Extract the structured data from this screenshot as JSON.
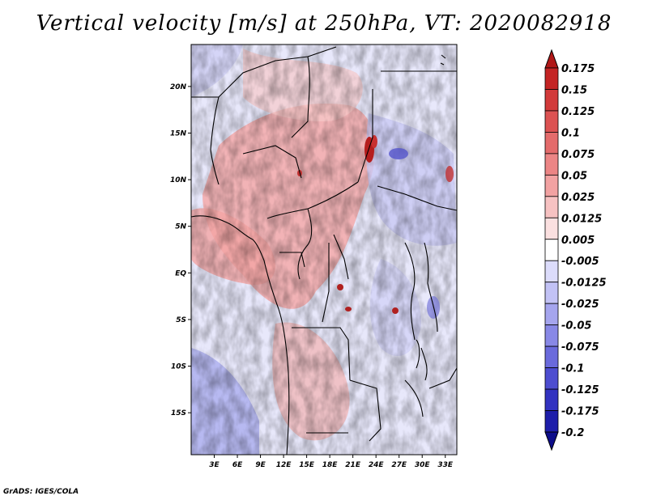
{
  "title": "Vertical velocity [m/s] at 250hPa, VT: 2020082918",
  "credit": "GrADS: IGES/COLA",
  "map": {
    "variable": "Vertical velocity",
    "units": "m/s",
    "level": "250hPa",
    "valid_time": "2020082918",
    "lon_range": [
      0,
      34.5
    ],
    "lat_range": [
      -19.5,
      24.5
    ],
    "lat_ticks": [
      {
        "value": 20,
        "label": "20N"
      },
      {
        "value": 15,
        "label": "15N"
      },
      {
        "value": 10,
        "label": "10N"
      },
      {
        "value": 5,
        "label": "5N"
      },
      {
        "value": 0,
        "label": "EQ"
      },
      {
        "value": -5,
        "label": "5S"
      },
      {
        "value": -10,
        "label": "10S"
      },
      {
        "value": -15,
        "label": "15S"
      }
    ],
    "lon_ticks": [
      {
        "value": 3,
        "label": "3E"
      },
      {
        "value": 6,
        "label": "6E"
      },
      {
        "value": 9,
        "label": "9E"
      },
      {
        "value": 12,
        "label": "12E"
      },
      {
        "value": 15,
        "label": "15E"
      },
      {
        "value": 18,
        "label": "18E"
      },
      {
        "value": 21,
        "label": "21E"
      },
      {
        "value": 24,
        "label": "24E"
      },
      {
        "value": 27,
        "label": "27E"
      },
      {
        "value": 30,
        "label": "30E"
      },
      {
        "value": 33,
        "label": "33E"
      }
    ]
  },
  "colorbar": {
    "levels": [
      "0.175",
      "0.15",
      "0.125",
      "0.1",
      "0.075",
      "0.05",
      "0.025",
      "0.0125",
      "0.005",
      "-0.005",
      "-0.0125",
      "-0.025",
      "-0.05",
      "-0.075",
      "-0.1",
      "-0.125",
      "-0.175",
      "-0.2"
    ],
    "colors": [
      "#b01818",
      "#c42424",
      "#d23a3a",
      "#dc5252",
      "#e46b6b",
      "#ec8585",
      "#f2a2a2",
      "#f7c2c2",
      "#fbe0e0",
      "#ffffff",
      "#dcdcfb",
      "#c2c2f5",
      "#a5a5ee",
      "#8888e6",
      "#6a6adc",
      "#4d4dd0",
      "#3232c0",
      "#1e1eaa",
      "#0d0d8a"
    ]
  }
}
